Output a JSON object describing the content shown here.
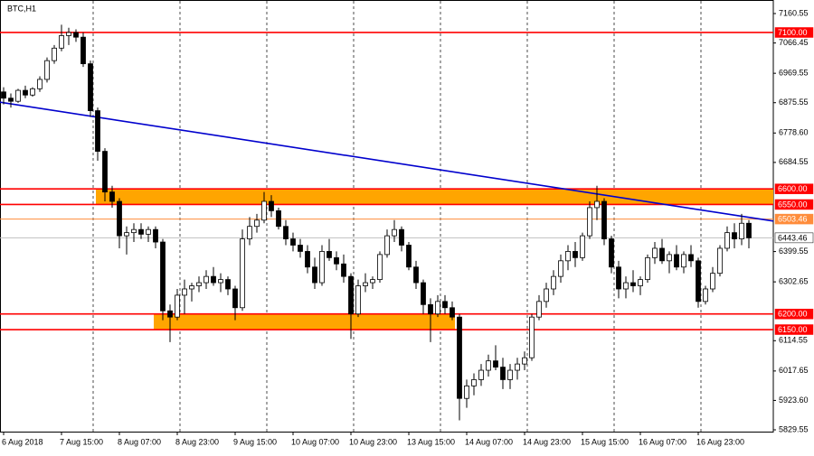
{
  "chart_data": {
    "type": "candlestick",
    "title": "BTC,H1",
    "categories": [
      "6 Aug 2018",
      null,
      null,
      null,
      null,
      null,
      null,
      null,
      "7 Aug 15:00",
      null,
      null,
      null,
      null,
      null,
      null,
      null,
      "8 Aug 07:00",
      null,
      null,
      null,
      null,
      null,
      null,
      null,
      "8 Aug 23:00",
      null,
      null,
      null,
      null,
      null,
      null,
      null,
      "9 Aug 15:00",
      null,
      null,
      null,
      null,
      null,
      null,
      null,
      "10 Aug 07:00",
      null,
      null,
      null,
      null,
      null,
      null,
      null,
      "10 Aug 23:00",
      null,
      null,
      null,
      null,
      null,
      null,
      null,
      "13 Aug 15:00",
      null,
      null,
      null,
      null,
      null,
      null,
      null,
      "14 Aug 07:00",
      null,
      null,
      null,
      null,
      null,
      null,
      null,
      "14 Aug 23:00",
      null,
      null,
      null,
      null,
      null,
      null,
      null,
      "15 Aug 15:00",
      null,
      null,
      null,
      null,
      null,
      null,
      null,
      "16 Aug 07:00",
      null,
      null,
      null,
      null,
      null,
      null,
      null,
      "16 Aug 23:00",
      null,
      null,
      null,
      null,
      null,
      null,
      null
    ],
    "candles": [
      [
        6910,
        6925,
        6870,
        6890
      ],
      [
        6890,
        6905,
        6860,
        6880
      ],
      [
        6880,
        6920,
        6875,
        6915
      ],
      [
        6915,
        6930,
        6890,
        6900
      ],
      [
        6900,
        6925,
        6895,
        6920
      ],
      [
        6920,
        6960,
        6910,
        6950
      ],
      [
        6950,
        7020,
        6940,
        7010
      ],
      [
        7010,
        7060,
        7000,
        7050
      ],
      [
        7050,
        7125,
        7040,
        7090
      ],
      [
        7090,
        7115,
        7060,
        7100
      ],
      [
        7100,
        7110,
        7070,
        7085
      ],
      [
        7085,
        7100,
        6990,
        7000
      ],
      [
        7000,
        7010,
        6830,
        6850
      ],
      [
        6850,
        6860,
        6690,
        6720
      ],
      [
        6720,
        6730,
        6560,
        6590
      ],
      [
        6590,
        6610,
        6540,
        6560
      ],
      [
        6560,
        6570,
        6410,
        6450
      ],
      [
        6450,
        6480,
        6390,
        6460
      ],
      [
        6460,
        6490,
        6430,
        6470
      ],
      [
        6470,
        6490,
        6440,
        6455
      ],
      [
        6455,
        6480,
        6430,
        6470
      ],
      [
        6470,
        6480,
        6410,
        6430
      ],
      [
        6430,
        6440,
        6180,
        6210
      ],
      [
        6210,
        6230,
        6110,
        6190
      ],
      [
        6190,
        6280,
        6180,
        6260
      ],
      [
        6260,
        6310,
        6200,
        6280
      ],
      [
        6280,
        6300,
        6240,
        6290
      ],
      [
        6290,
        6320,
        6270,
        6300
      ],
      [
        6300,
        6340,
        6280,
        6320
      ],
      [
        6320,
        6350,
        6290,
        6300
      ],
      [
        6300,
        6330,
        6270,
        6310
      ],
      [
        6310,
        6320,
        6260,
        6280
      ],
      [
        6280,
        6290,
        6180,
        6220
      ],
      [
        6220,
        6470,
        6210,
        6440
      ],
      [
        6440,
        6510,
        6420,
        6480
      ],
      [
        6480,
        6520,
        6460,
        6500
      ],
      [
        6500,
        6590,
        6490,
        6560
      ],
      [
        6560,
        6580,
        6510,
        6530
      ],
      [
        6530,
        6540,
        6470,
        6480
      ],
      [
        6480,
        6500,
        6420,
        6440
      ],
      [
        6440,
        6460,
        6400,
        6420
      ],
      [
        6420,
        6440,
        6380,
        6400
      ],
      [
        6400,
        6420,
        6330,
        6350
      ],
      [
        6350,
        6380,
        6280,
        6300
      ],
      [
        6300,
        6420,
        6290,
        6400
      ],
      [
        6400,
        6440,
        6370,
        6380
      ],
      [
        6380,
        6400,
        6340,
        6360
      ],
      [
        6360,
        6390,
        6300,
        6320
      ],
      [
        6320,
        6330,
        6120,
        6200
      ],
      [
        6200,
        6310,
        6190,
        6290
      ],
      [
        6290,
        6330,
        6270,
        6300
      ],
      [
        6300,
        6320,
        6280,
        6310
      ],
      [
        6310,
        6400,
        6300,
        6390
      ],
      [
        6390,
        6470,
        6380,
        6450
      ],
      [
        6450,
        6500,
        6430,
        6470
      ],
      [
        6470,
        6480,
        6400,
        6420
      ],
      [
        6420,
        6430,
        6340,
        6350
      ],
      [
        6350,
        6370,
        6280,
        6300
      ],
      [
        6300,
        6310,
        6200,
        6230
      ],
      [
        6230,
        6250,
        6110,
        6200
      ],
      [
        6200,
        6260,
        6190,
        6240
      ],
      [
        6240,
        6260,
        6200,
        6220
      ],
      [
        6220,
        6240,
        6180,
        6190
      ],
      [
        6190,
        6200,
        5860,
        5930
      ],
      [
        5930,
        5990,
        5900,
        5970
      ],
      [
        5970,
        6010,
        5940,
        5990
      ],
      [
        5990,
        6040,
        5970,
        6020
      ],
      [
        6020,
        6070,
        6000,
        6050
      ],
      [
        6050,
        6100,
        6020,
        6030
      ],
      [
        6030,
        6060,
        5960,
        5990
      ],
      [
        5990,
        6040,
        5960,
        6020
      ],
      [
        6020,
        6060,
        5990,
        6040
      ],
      [
        6040,
        6080,
        6020,
        6060
      ],
      [
        6060,
        6200,
        6050,
        6190
      ],
      [
        6190,
        6260,
        6180,
        6240
      ],
      [
        6240,
        6300,
        6220,
        6280
      ],
      [
        6280,
        6340,
        6260,
        6320
      ],
      [
        6320,
        6390,
        6300,
        6370
      ],
      [
        6370,
        6420,
        6340,
        6400
      ],
      [
        6400,
        6430,
        6350,
        6380
      ],
      [
        6380,
        6460,
        6370,
        6450
      ],
      [
        6450,
        6560,
        6440,
        6540
      ],
      [
        6540,
        6610,
        6500,
        6560
      ],
      [
        6560,
        6570,
        6420,
        6440
      ],
      [
        6440,
        6450,
        6330,
        6350
      ],
      [
        6350,
        6370,
        6250,
        6280
      ],
      [
        6280,
        6320,
        6250,
        6300
      ],
      [
        6300,
        6340,
        6270,
        6290
      ],
      [
        6290,
        6320,
        6260,
        6310
      ],
      [
        6310,
        6390,
        6300,
        6380
      ],
      [
        6380,
        6430,
        6360,
        6410
      ],
      [
        6410,
        6440,
        6360,
        6370
      ],
      [
        6370,
        6400,
        6330,
        6390
      ],
      [
        6390,
        6420,
        6340,
        6350
      ],
      [
        6350,
        6400,
        6330,
        6390
      ],
      [
        6390,
        6420,
        6350,
        6370
      ],
      [
        6370,
        6380,
        6220,
        6240
      ],
      [
        6240,
        6290,
        6230,
        6280
      ],
      [
        6280,
        6350,
        6270,
        6330
      ],
      [
        6330,
        6420,
        6320,
        6410
      ],
      [
        6410,
        6480,
        6400,
        6460
      ],
      [
        6460,
        6490,
        6410,
        6440
      ],
      [
        6440,
        6520,
        6420,
        6490
      ],
      [
        6490,
        6500,
        6410,
        6443.46
      ]
    ],
    "ylim": [
      5823.8,
      7198.1
    ],
    "yticks": [
      7160.55,
      7066.45,
      6969.55,
      6875.55,
      {
        "value": 6778.6,
        "label": "6778.60"
      },
      6684.55,
      6399.55,
      6302.65,
      6114.55,
      6017.65,
      {
        "value": 5923.6,
        "label": "5923.60"
      },
      5829.55
    ],
    "levels": [
      {
        "value": 7100,
        "label": "7100.00",
        "color": "#ff0000"
      },
      {
        "value": 6600,
        "label": "6600.00",
        "color": "#ff0000"
      },
      {
        "value": 6550,
        "label": "6550.00",
        "color": "#ff0000"
      },
      {
        "value": 6503.46,
        "label": "6503.46",
        "color": "#ff8c3a"
      },
      {
        "value": 6443.46,
        "label": "6443.46",
        "color": "#c0c0c0"
      },
      {
        "value": 6200,
        "label": "6200.00",
        "color": "#ff0000"
      },
      {
        "value": 6150,
        "label": "6150.00",
        "color": "#ff0000"
      }
    ],
    "zones": [
      {
        "from": 6550,
        "to": 6600,
        "color": "#ffa500"
      },
      {
        "from": 6150,
        "to": 6200,
        "color": "#ffa500"
      }
    ],
    "trendline": {
      "values": [
        6877,
        6497
      ],
      "color": "#0000cd"
    }
  }
}
